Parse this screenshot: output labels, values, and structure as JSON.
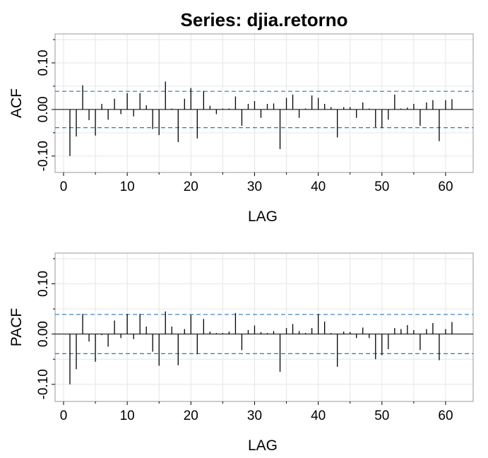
{
  "chart_data": [
    {
      "type": "bar",
      "title": "Series:  djia.retorno",
      "xlabel": "LAG",
      "ylabel": "ACF",
      "xlim": [
        0,
        63
      ],
      "ylim": [
        -0.12,
        0.15
      ],
      "grid": true,
      "x_ticks": [
        0,
        10,
        20,
        30,
        40,
        50,
        60
      ],
      "y_ticks": [
        -0.1,
        0.0,
        0.1
      ],
      "y_tick_labels": [
        "-0.10",
        "0.00",
        "0.10"
      ],
      "confidence_band": 0.039,
      "lags": [
        1,
        2,
        3,
        4,
        5,
        6,
        7,
        8,
        9,
        10,
        11,
        12,
        13,
        14,
        15,
        16,
        17,
        18,
        19,
        20,
        21,
        22,
        23,
        24,
        25,
        26,
        27,
        28,
        29,
        30,
        31,
        32,
        33,
        34,
        35,
        36,
        37,
        38,
        39,
        40,
        41,
        42,
        43,
        44,
        45,
        46,
        47,
        48,
        49,
        50,
        51,
        52,
        53,
        54,
        55,
        56,
        57,
        58,
        59,
        60,
        61
      ],
      "values": [
        -0.1,
        -0.058,
        0.052,
        -0.023,
        -0.056,
        0.012,
        -0.022,
        0.023,
        -0.01,
        0.035,
        -0.015,
        0.035,
        0.009,
        -0.042,
        -0.055,
        0.06,
        0.002,
        -0.07,
        0.023,
        0.046,
        -0.062,
        0.04,
        0.008,
        -0.01,
        0.002,
        0.002,
        0.028,
        -0.035,
        0.012,
        0.018,
        -0.018,
        0.012,
        0.013,
        -0.085,
        0.025,
        0.032,
        -0.018,
        0.002,
        0.03,
        0.025,
        0.012,
        0.005,
        -0.06,
        0.005,
        0.005,
        -0.018,
        0.015,
        0.002,
        -0.038,
        -0.04,
        -0.022,
        0.032,
        0.002,
        0.004,
        0.012,
        -0.035,
        0.015,
        0.02,
        -0.068,
        0.02,
        0.022
      ]
    },
    {
      "type": "bar",
      "title": "",
      "xlabel": "LAG",
      "ylabel": "PACF",
      "xlim": [
        0,
        63
      ],
      "ylim": [
        -0.12,
        0.15
      ],
      "grid": true,
      "x_ticks": [
        0,
        10,
        20,
        30,
        40,
        50,
        60
      ],
      "y_ticks": [
        -0.1,
        0.0,
        0.1
      ],
      "y_tick_labels": [
        "-0.10",
        "0.00",
        "0.10"
      ],
      "confidence_band": 0.039,
      "lags": [
        1,
        2,
        3,
        4,
        5,
        6,
        7,
        8,
        9,
        10,
        11,
        12,
        13,
        14,
        15,
        16,
        17,
        18,
        19,
        20,
        21,
        22,
        23,
        24,
        25,
        26,
        27,
        28,
        29,
        30,
        31,
        32,
        33,
        34,
        35,
        36,
        37,
        38,
        39,
        40,
        41,
        42,
        43,
        44,
        45,
        46,
        47,
        48,
        49,
        50,
        51,
        52,
        53,
        54,
        55,
        56,
        57,
        58,
        59,
        60,
        61
      ],
      "values": [
        -0.1,
        -0.07,
        0.04,
        -0.015,
        -0.055,
        -0.002,
        -0.025,
        0.027,
        -0.008,
        0.04,
        -0.01,
        0.04,
        0.015,
        -0.035,
        -0.063,
        0.045,
        0.015,
        -0.062,
        0.01,
        0.038,
        -0.04,
        0.03,
        0.005,
        0.002,
        0.002,
        0.005,
        0.042,
        -0.032,
        0.008,
        0.017,
        0.004,
        0.002,
        0.006,
        -0.075,
        0.012,
        0.02,
        0.006,
        0.002,
        0.012,
        0.04,
        0.025,
        0.002,
        -0.065,
        0.005,
        0.004,
        -0.008,
        0.013,
        -0.008,
        -0.05,
        -0.042,
        -0.03,
        0.012,
        0.01,
        0.018,
        0.008,
        -0.032,
        0.01,
        0.022,
        -0.052,
        0.01,
        0.024
      ]
    }
  ],
  "colors": {
    "spike": "#000000",
    "ci_line": "#2e77c0",
    "zero_line": "#000000",
    "grid": "#e6e6e6",
    "frame": "#999999"
  }
}
